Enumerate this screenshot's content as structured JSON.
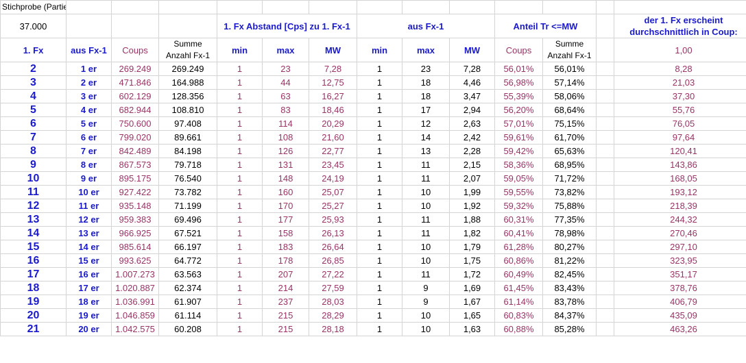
{
  "header": {
    "stichprobe_label": "Stichprobe (Partie)",
    "stichprobe_value": "37.000",
    "group_abstand": "1. Fx Abstand [Cps] zu 1. Fx-1",
    "group_aus": "aus Fx-1",
    "group_anteil": "Anteil Tr <=MW",
    "group_erscheint": "der 1. Fx erscheint durchschnittlich in Coup:",
    "col_fx": "1. Fx",
    "col_ausfx": "aus Fx-1",
    "col_coups": "Coups",
    "col_summe": "Summe Anzahl Fx-1",
    "col_min1": "min",
    "col_max1": "max",
    "col_mw1": "MW",
    "col_min2": "min",
    "col_max2": "max",
    "col_mw2": "MW",
    "col_coups2": "Coups",
    "col_summe2": "Summe Anzahl Fx-1",
    "col_erscheint": "1,00"
  },
  "rows": [
    {
      "fx": "2",
      "aus": "1 er",
      "coups": "269.249",
      "summe": "269.249",
      "min1": "1",
      "max1": "23",
      "mw1": "7,28",
      "min2": "1",
      "max2": "23",
      "mw2": "7,28",
      "pct1": "56,01%",
      "pct2": "56,01%",
      "er": "8,28"
    },
    {
      "fx": "3",
      "aus": "2 er",
      "coups": "471.846",
      "summe": "164.988",
      "min1": "1",
      "max1": "44",
      "mw1": "12,75",
      "min2": "1",
      "max2": "18",
      "mw2": "4,46",
      "pct1": "56,98%",
      "pct2": "57,14%",
      "er": "21,03"
    },
    {
      "fx": "4",
      "aus": "3 er",
      "coups": "602.129",
      "summe": "128.356",
      "min1": "1",
      "max1": "63",
      "mw1": "16,27",
      "min2": "1",
      "max2": "18",
      "mw2": "3,47",
      "pct1": "55,39%",
      "pct2": "58,06%",
      "er": "37,30"
    },
    {
      "fx": "5",
      "aus": "4 er",
      "coups": "682.944",
      "summe": "108.810",
      "min1": "1",
      "max1": "83",
      "mw1": "18,46",
      "min2": "1",
      "max2": "17",
      "mw2": "2,94",
      "pct1": "56,20%",
      "pct2": "68,64%",
      "er": "55,76"
    },
    {
      "fx": "6",
      "aus": "5 er",
      "coups": "750.600",
      "summe": "97.408",
      "min1": "1",
      "max1": "114",
      "mw1": "20,29",
      "min2": "1",
      "max2": "12",
      "mw2": "2,63",
      "pct1": "57,01%",
      "pct2": "75,15%",
      "er": "76,05"
    },
    {
      "fx": "7",
      "aus": "6 er",
      "coups": "799.020",
      "summe": "89.661",
      "min1": "1",
      "max1": "108",
      "mw1": "21,60",
      "min2": "1",
      "max2": "14",
      "mw2": "2,42",
      "pct1": "59,61%",
      "pct2": "61,70%",
      "er": "97,64"
    },
    {
      "fx": "8",
      "aus": "7 er",
      "coups": "842.489",
      "summe": "84.198",
      "min1": "1",
      "max1": "126",
      "mw1": "22,77",
      "min2": "1",
      "max2": "13",
      "mw2": "2,28",
      "pct1": "59,42%",
      "pct2": "65,63%",
      "er": "120,41"
    },
    {
      "fx": "9",
      "aus": "8 er",
      "coups": "867.573",
      "summe": "79.718",
      "min1": "1",
      "max1": "131",
      "mw1": "23,45",
      "min2": "1",
      "max2": "11",
      "mw2": "2,15",
      "pct1": "58,36%",
      "pct2": "68,95%",
      "er": "143,86"
    },
    {
      "fx": "10",
      "aus": "9 er",
      "coups": "895.175",
      "summe": "76.540",
      "min1": "1",
      "max1": "148",
      "mw1": "24,19",
      "min2": "1",
      "max2": "11",
      "mw2": "2,07",
      "pct1": "59,05%",
      "pct2": "71,72%",
      "er": "168,05"
    },
    {
      "fx": "11",
      "aus": "10 er",
      "coups": "927.422",
      "summe": "73.782",
      "min1": "1",
      "max1": "160",
      "mw1": "25,07",
      "min2": "1",
      "max2": "10",
      "mw2": "1,99",
      "pct1": "59,55%",
      "pct2": "73,82%",
      "er": "193,12"
    },
    {
      "fx": "12",
      "aus": "11 er",
      "coups": "935.148",
      "summe": "71.199",
      "min1": "1",
      "max1": "170",
      "mw1": "25,27",
      "min2": "1",
      "max2": "10",
      "mw2": "1,92",
      "pct1": "59,32%",
      "pct2": "75,88%",
      "er": "218,39"
    },
    {
      "fx": "13",
      "aus": "12 er",
      "coups": "959.383",
      "summe": "69.496",
      "min1": "1",
      "max1": "177",
      "mw1": "25,93",
      "min2": "1",
      "max2": "11",
      "mw2": "1,88",
      "pct1": "60,31%",
      "pct2": "77,35%",
      "er": "244,32"
    },
    {
      "fx": "14",
      "aus": "13 er",
      "coups": "966.925",
      "summe": "67.521",
      "min1": "1",
      "max1": "158",
      "mw1": "26,13",
      "min2": "1",
      "max2": "11",
      "mw2": "1,82",
      "pct1": "60,41%",
      "pct2": "78,98%",
      "er": "270,46"
    },
    {
      "fx": "15",
      "aus": "14 er",
      "coups": "985.614",
      "summe": "66.197",
      "min1": "1",
      "max1": "183",
      "mw1": "26,64",
      "min2": "1",
      "max2": "10",
      "mw2": "1,79",
      "pct1": "61,28%",
      "pct2": "80,27%",
      "er": "297,10"
    },
    {
      "fx": "16",
      "aus": "15 er",
      "coups": "993.625",
      "summe": "64.772",
      "min1": "1",
      "max1": "178",
      "mw1": "26,85",
      "min2": "1",
      "max2": "10",
      "mw2": "1,75",
      "pct1": "60,86%",
      "pct2": "81,22%",
      "er": "323,95"
    },
    {
      "fx": "17",
      "aus": "16 er",
      "coups": "1.007.273",
      "summe": "63.563",
      "min1": "1",
      "max1": "207",
      "mw1": "27,22",
      "min2": "1",
      "max2": "11",
      "mw2": "1,72",
      "pct1": "60,49%",
      "pct2": "82,45%",
      "er": "351,17"
    },
    {
      "fx": "18",
      "aus": "17 er",
      "coups": "1.020.887",
      "summe": "62.374",
      "min1": "1",
      "max1": "214",
      "mw1": "27,59",
      "min2": "1",
      "max2": "9",
      "mw2": "1,69",
      "pct1": "61,45%",
      "pct2": "83,43%",
      "er": "378,76"
    },
    {
      "fx": "19",
      "aus": "18 er",
      "coups": "1.036.991",
      "summe": "61.907",
      "min1": "1",
      "max1": "237",
      "mw1": "28,03",
      "min2": "1",
      "max2": "9",
      "mw2": "1,67",
      "pct1": "61,14%",
      "pct2": "83,78%",
      "er": "406,79"
    },
    {
      "fx": "20",
      "aus": "19 er",
      "coups": "1.046.859",
      "summe": "61.114",
      "min1": "1",
      "max1": "215",
      "mw1": "28,29",
      "min2": "1",
      "max2": "10",
      "mw2": "1,65",
      "pct1": "60,83%",
      "pct2": "84,37%",
      "er": "435,09"
    },
    {
      "fx": "21",
      "aus": "20 er",
      "coups": "1.042.575",
      "summe": "60.208",
      "min1": "1",
      "max1": "215",
      "mw1": "28,18",
      "min2": "1",
      "max2": "10",
      "mw2": "1,63",
      "pct1": "60,88%",
      "pct2": "85,28%",
      "er": "463,26"
    }
  ]
}
